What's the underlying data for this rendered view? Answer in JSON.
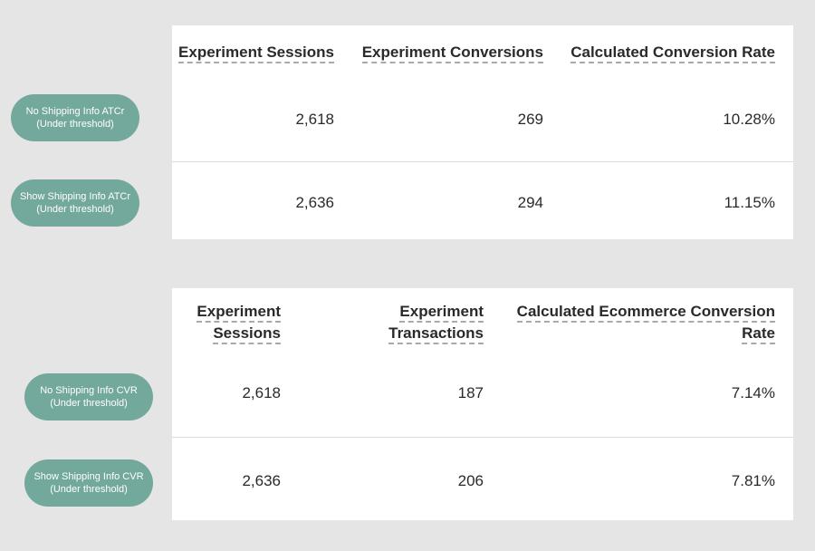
{
  "table1": {
    "headers": [
      "Experiment Sessions",
      "Experiment Conversions",
      "Calculated Conversion Rate"
    ],
    "rows": [
      {
        "label_line1": "No Shipping Info ATCr",
        "label_line2": "(Under threshold)",
        "values": [
          "2,618",
          "269",
          "10.28%"
        ]
      },
      {
        "label_line1": "Show Shipping Info ATCr",
        "label_line2": "(Under threshold)",
        "values": [
          "2,636",
          "294",
          "11.15%"
        ]
      }
    ]
  },
  "table2": {
    "headers": [
      {
        "line1": "Experiment",
        "line2": "Sessions"
      },
      {
        "line1": "Experiment",
        "line2": "Transactions"
      },
      {
        "line1": "Calculated Ecommerce Conversion",
        "line2": "Rate"
      }
    ],
    "rows": [
      {
        "label_line1": "No Shipping Info CVR",
        "label_line2": "(Under threshold)",
        "values": [
          "2,618",
          "187",
          "7.14%"
        ]
      },
      {
        "label_line1": "Show Shipping Info CVR",
        "label_line2": "(Under threshold)",
        "values": [
          "2,636",
          "206",
          "7.81%"
        ]
      }
    ]
  },
  "colors": {
    "background": "#e5e5e5",
    "card": "#ffffff",
    "pill": "#73a89c"
  }
}
